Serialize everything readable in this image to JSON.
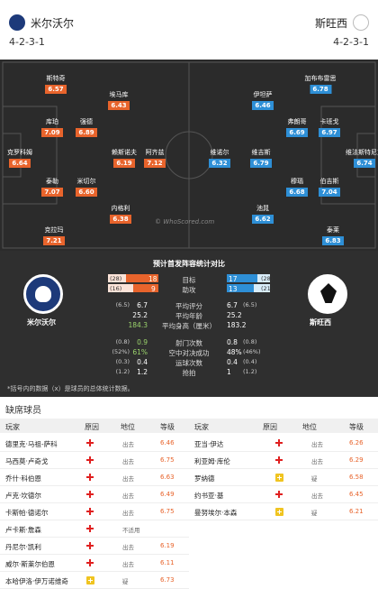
{
  "header": {
    "home_team": "米尔沃尔",
    "home_formation": "4-2-3-1",
    "away_team": "斯旺西",
    "away_formation": "4-2-3-1"
  },
  "pitch": {
    "watermark": "© WhoScored.com",
    "home_players": [
      {
        "name": "斯特奇",
        "rating": "6.57"
      },
      {
        "name": "埃马库",
        "rating": "6.43"
      },
      {
        "name": "库珀",
        "rating": "7.09"
      },
      {
        "name": "强德",
        "rating": "6.89"
      },
      {
        "name": "克罗科姆",
        "rating": "6.64"
      },
      {
        "name": "赖斯诺夫",
        "rating": "6.19"
      },
      {
        "name": "阿齐兹",
        "rating": "7.12"
      },
      {
        "name": "泰勒",
        "rating": "7.07"
      },
      {
        "name": "米切尔",
        "rating": "6.60"
      },
      {
        "name": "内格利",
        "rating": "6.38"
      },
      {
        "name": "克拉玛",
        "rating": "7.21"
      }
    ],
    "away_players": [
      {
        "name": "加布布雷思",
        "rating": "6.78"
      },
      {
        "name": "伊坦萨",
        "rating": "6.46"
      },
      {
        "name": "弗朗哥",
        "rating": "6.69"
      },
      {
        "name": "卡班戈",
        "rating": "6.97"
      },
      {
        "name": "维法斯特尼克",
        "rating": "6.74"
      },
      {
        "name": "维诺尔",
        "rating": "6.32"
      },
      {
        "name": "维吉斯",
        "rating": "6.79"
      },
      {
        "name": "穆瑙",
        "rating": "6.68"
      },
      {
        "name": "伯吉斯",
        "rating": "7.04"
      },
      {
        "name": "池晁",
        "rating": "6.62"
      },
      {
        "name": "泰莱",
        "rating": "6.83"
      }
    ]
  },
  "stats": {
    "title": "预计首发阵容统计对比",
    "home_name": "米尔沃尔",
    "away_name": "斯旺西",
    "goals": {
      "label": "目标",
      "home_total": "(28)",
      "home_avg": "18",
      "away_avg": "17",
      "away_total": "(28)"
    },
    "assists": {
      "label": "助攻",
      "home_total": "(16)",
      "home_avg": "9",
      "away_avg": "13",
      "away_total": "(21)"
    },
    "rows": [
      {
        "label": "平均评分",
        "home_p": "(6.5)",
        "home": "6.7",
        "away": "6.7",
        "away_p": "(6.5)"
      },
      {
        "label": "平均年龄",
        "home_p": "",
        "home": "25.2",
        "away": "25.2",
        "away_p": ""
      },
      {
        "label": "平均身高（厘米）",
        "home_p": "",
        "home": "184.3",
        "away": "183.2",
        "away_p": ""
      },
      {
        "label": "射门次数",
        "home_p": "(0.8)",
        "home": "0.9",
        "away": "0.8",
        "away_p": "(0.8)"
      },
      {
        "label": "空中对决成功",
        "home_p": "(52%)",
        "home": "61%",
        "away": "48%",
        "away_p": "(46%)"
      },
      {
        "label": "运球次数",
        "home_p": "(0.3)",
        "home": "0.4",
        "away": "0.4",
        "away_p": "(0.4)"
      },
      {
        "label": "抢拍",
        "home_p": "(1.2)",
        "home": "1.2",
        "away": "1",
        "away_p": "(1.2)"
      }
    ],
    "note": "*括号内的数据（x）是球员的总体统计数据。"
  },
  "missing": {
    "title": "缺席球员",
    "headers": {
      "player": "玩家",
      "reason": "原因",
      "position": "地位",
      "level": "等级"
    },
    "home": [
      {
        "name": "德里克·马祖-萨科",
        "reason": "injury",
        "status": "出去",
        "rating": "6.46"
      },
      {
        "name": "马西莫·卢奇戈",
        "reason": "injury",
        "status": "出去",
        "rating": "6.75"
      },
      {
        "name": "乔什·科伯恩",
        "reason": "injury",
        "status": "出去",
        "rating": "6.63"
      },
      {
        "name": "卢克·坎德尔",
        "reason": "injury",
        "status": "出去",
        "rating": "6.49"
      },
      {
        "name": "卡斯帕·德诺尔",
        "reason": "injury",
        "status": "出去",
        "rating": "6.75"
      },
      {
        "name": "卢卡斯·詹森",
        "reason": "injury",
        "status": "不适用",
        "rating": ""
      },
      {
        "name": "丹尼尔·凯利",
        "reason": "injury",
        "status": "出去",
        "rating": "6.19"
      },
      {
        "name": "威尔·斯莱尔伯恩",
        "reason": "injury",
        "status": "出去",
        "rating": "6.11"
      },
      {
        "name": "本哈伊洛·伊万诺维奇",
        "reason": "doubt",
        "status": "疑",
        "rating": "6.73"
      }
    ],
    "away": [
      {
        "name": "亚当·伊达",
        "reason": "injury",
        "status": "出去",
        "rating": "6.26"
      },
      {
        "name": "利亚姆·库伦",
        "reason": "injury",
        "status": "出去",
        "rating": "6.29"
      },
      {
        "name": "罗纳德",
        "reason": "doubt",
        "status": "疑",
        "rating": "6.58"
      },
      {
        "name": "约书亚·基",
        "reason": "injury",
        "status": "出去",
        "rating": "6.45"
      },
      {
        "name": "曼努埃尔·本森",
        "reason": "doubt",
        "status": "疑",
        "rating": "6.21"
      }
    ]
  }
}
